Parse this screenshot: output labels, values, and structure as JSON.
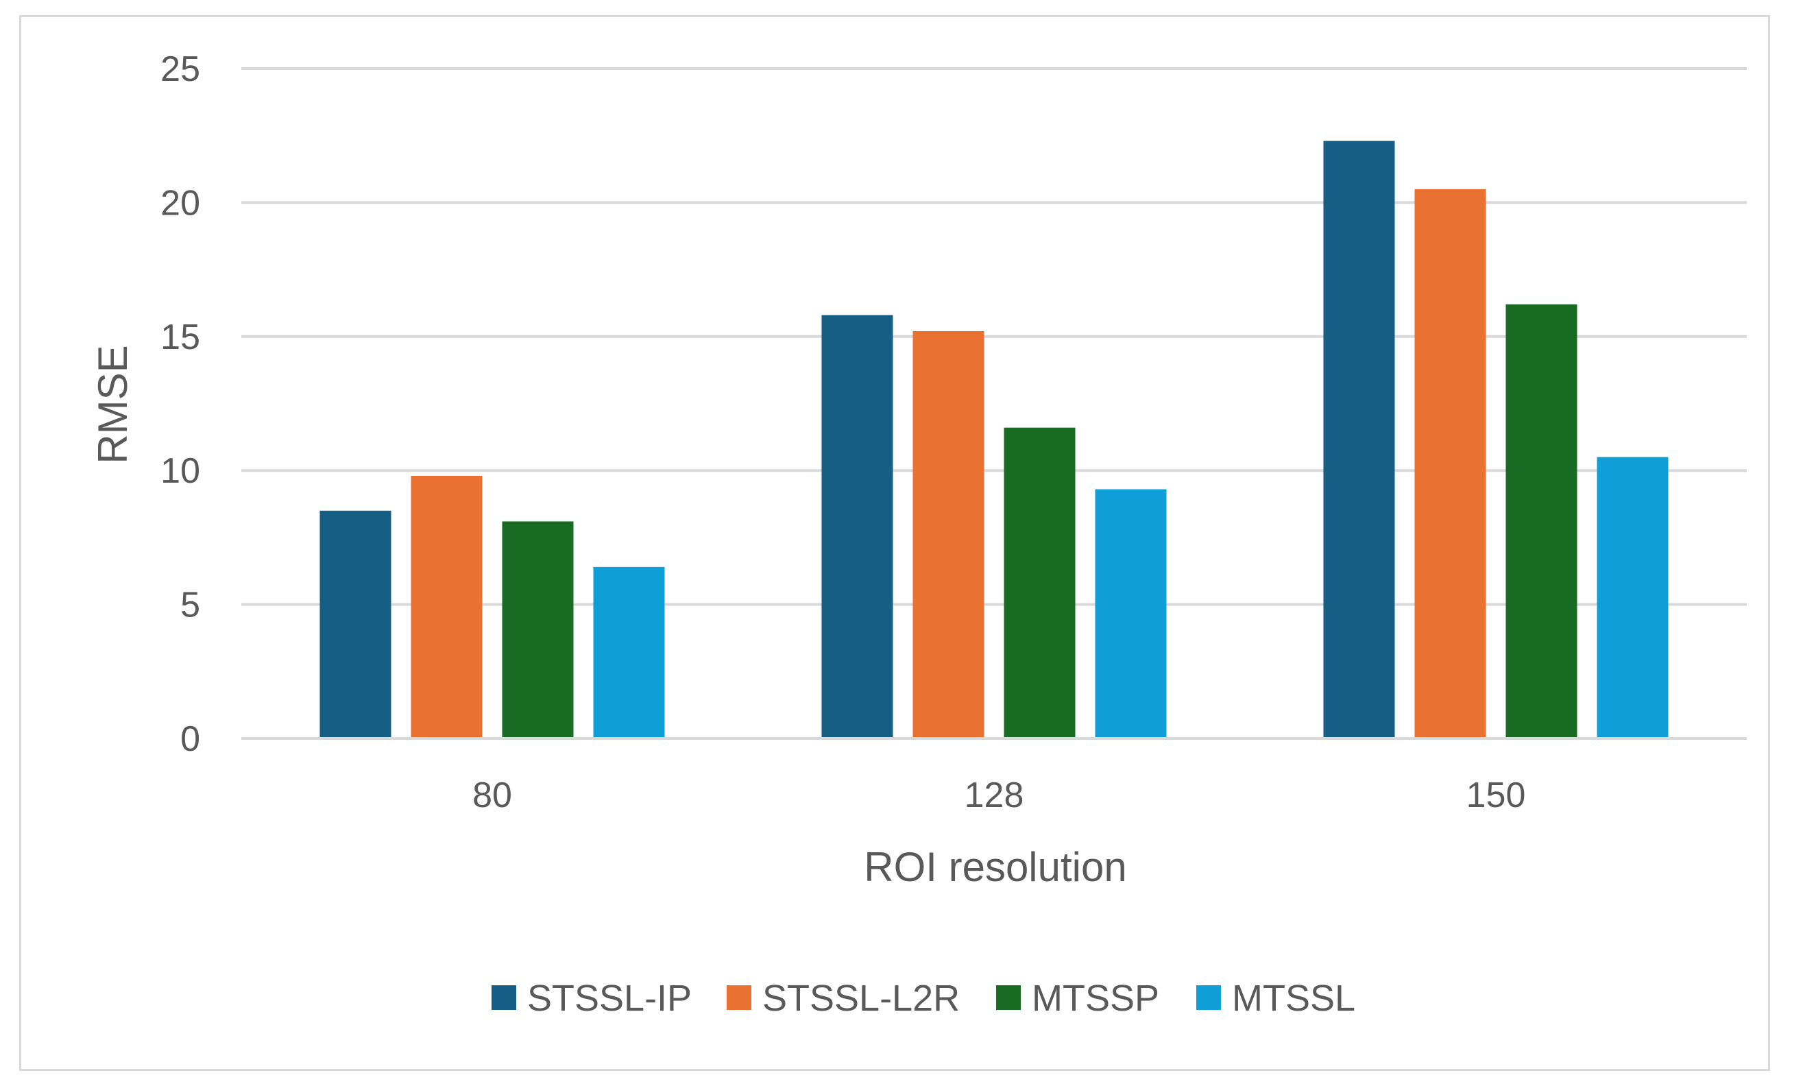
{
  "chart_data": {
    "type": "bar",
    "title": "",
    "xlabel": "ROI resolution",
    "ylabel": "RMSE",
    "ylim": [
      0,
      25
    ],
    "yticks": [
      0,
      5,
      10,
      15,
      20,
      25
    ],
    "grid": true,
    "legend_position": "bottom",
    "categories": [
      "80",
      "128",
      "150"
    ],
    "series": [
      {
        "name": "STSSL-IP",
        "color": "#165E83",
        "values": [
          8.5,
          15.8,
          22.3
        ]
      },
      {
        "name": "STSSL-L2R",
        "color": "#E97132",
        "values": [
          9.8,
          15.2,
          20.5
        ]
      },
      {
        "name": "MTSSP",
        "color": "#196B24",
        "values": [
          8.1,
          11.6,
          16.2
        ]
      },
      {
        "name": "MTSSL",
        "color": "#0F9ED5",
        "values": [
          6.4,
          9.3,
          10.5
        ]
      }
    ]
  }
}
